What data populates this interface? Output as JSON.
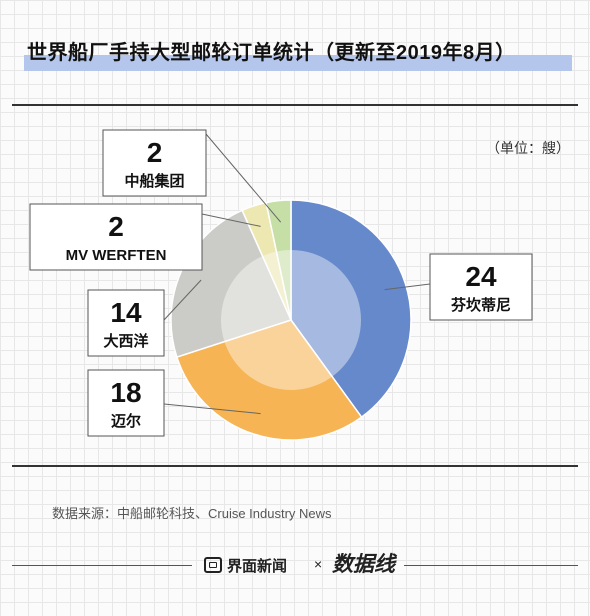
{
  "title": "世界船厂手持大型邮轮订单统计（更新至2019年8月）",
  "unit": "（单位：艘）",
  "source": "数据来源：中船邮轮科技、Cruise Industry News",
  "footer": {
    "brand_a": "界面新闻",
    "separator": "×",
    "brand_b": "数据线"
  },
  "colors": {
    "title_band": "#b4c6ec",
    "series": [
      "#6689cc",
      "#f6b454",
      "#cbccc7",
      "#ede7b2",
      "#c6dfa7"
    ]
  },
  "chart_data": {
    "type": "pie",
    "style": "donut-with-inner-highlight",
    "categories": [
      "芬坎蒂尼",
      "迈尔",
      "大西洋",
      "MV WERFTEN",
      "中船集团"
    ],
    "values": [
      24,
      18,
      14,
      2,
      2
    ],
    "value_labels": [
      "24",
      "18",
      "14",
      "2",
      "2"
    ]
  }
}
